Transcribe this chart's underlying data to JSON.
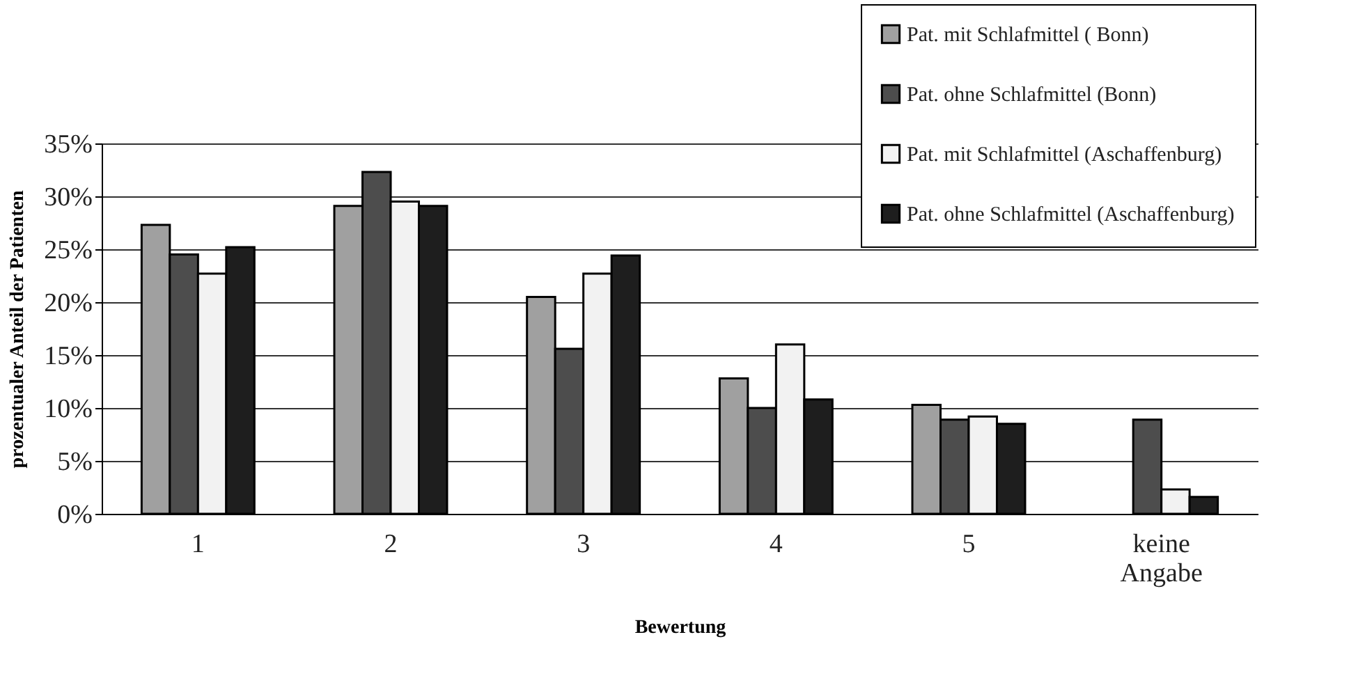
{
  "chart_data": {
    "type": "bar",
    "xlabel": "Bewertung",
    "ylabel": "prozentualer Anteil der Patienten",
    "categories": [
      "1",
      "2",
      "3",
      "4",
      "5",
      "keine Angabe"
    ],
    "series": [
      {
        "name": "Pat. mit Schlafmittel ( Bonn)",
        "color": "#a0a0a0",
        "values": [
          27.3,
          29.1,
          20.5,
          12.8,
          10.3,
          null
        ]
      },
      {
        "name": "Pat. ohne Schlafmittel (Bonn)",
        "color": "#4d4d4d",
        "values": [
          24.5,
          32.3,
          15.6,
          10.0,
          8.9,
          8.9
        ]
      },
      {
        "name": "Pat. mit Schlafmittel (Aschaffenburg)",
        "color": "#f2f2f2",
        "values": [
          22.7,
          29.5,
          22.7,
          16.0,
          9.2,
          2.3
        ]
      },
      {
        "name": "Pat. ohne Schlafmittel (Aschaffenburg)",
        "color": "#1e1e1e",
        "values": [
          25.2,
          29.1,
          24.4,
          10.8,
          8.5,
          1.6
        ]
      }
    ],
    "ylim": [
      0,
      35
    ],
    "yticks": [
      {
        "value": 0,
        "label": "0%"
      },
      {
        "value": 5,
        "label": "5%"
      },
      {
        "value": 10,
        "label": "10%"
      },
      {
        "value": 15,
        "label": "15%"
      },
      {
        "value": 20,
        "label": "20%"
      },
      {
        "value": 25,
        "label": "25%"
      },
      {
        "value": 30,
        "label": "30%"
      },
      {
        "value": 35,
        "label": "35%"
      }
    ],
    "grid": "y",
    "legend": "top right"
  }
}
